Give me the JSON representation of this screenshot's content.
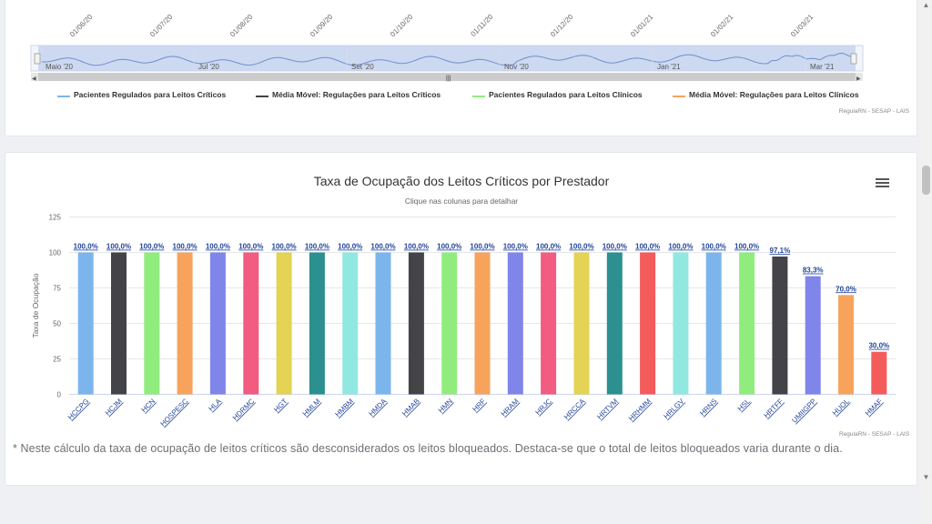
{
  "top_chart": {
    "date_labels": [
      "01/06/20",
      "01/07/20",
      "01/08/20",
      "01/09/20",
      "01/10/20",
      "01/11/20",
      "01/12/20",
      "01/01/21",
      "01/02/21",
      "01/03/21"
    ],
    "navigator_labels": [
      "Maio '20",
      "Jul '20",
      "Set '20",
      "Nov '20",
      "Jan '21",
      "Mar '21"
    ],
    "legend": [
      {
        "label": "Pacientes Regulados para Leitos Críticos",
        "color": "#7cb5ec"
      },
      {
        "label": "Média Móvel: Regulações para Leitos Críticos",
        "color": "#434348"
      },
      {
        "label": "Pacientes Regulados para Leitos Clínicos",
        "color": "#90ed7d"
      },
      {
        "label": "Média Móvel: Regulações para Leitos Clínicos",
        "color": "#f7a35c"
      }
    ],
    "credits": "RegulaRN - SESAP - LAIS"
  },
  "chart_data": {
    "type": "bar",
    "title": "Taxa de Ocupação dos Leitos Críticos por Prestador",
    "subtitle": "Clique nas colunas para detalhar",
    "ylabel": "Taxa de Ocupação",
    "ylim": [
      0,
      125
    ],
    "yticks": [
      0,
      25,
      50,
      75,
      100,
      125
    ],
    "grid": true,
    "categories": [
      "HCCPG",
      "HCJM",
      "HCN",
      "HOSPESC",
      "HLA",
      "HDRMC",
      "HGT",
      "HMLM",
      "HMBM",
      "HMDA",
      "HMAB",
      "HMN",
      "HRF",
      "HRAM",
      "HRJC",
      "HRCCA",
      "HRTVM",
      "HRHMM",
      "HRLGV",
      "HRNS",
      "HSL",
      "HRTFF",
      "UMIIGPP",
      "HUOL",
      "HMAF"
    ],
    "values": [
      100.0,
      100.0,
      100.0,
      100.0,
      100.0,
      100.0,
      100.0,
      100.0,
      100.0,
      100.0,
      100.0,
      100.0,
      100.0,
      100.0,
      100.0,
      100.0,
      100.0,
      100.0,
      100.0,
      100.0,
      100.0,
      97.1,
      83.3,
      70.0,
      30.0
    ],
    "data_labels": [
      "100,0%",
      "100,0%",
      "100,0%",
      "100,0%",
      "100,0%",
      "100,0%",
      "100,0%",
      "100,0%",
      "100,0%",
      "100,0%",
      "100,0%",
      "100,0%",
      "100,0%",
      "100,0%",
      "100,0%",
      "100,0%",
      "100,0%",
      "100,0%",
      "100,0%",
      "100,0%",
      "100,0%",
      "97,1%",
      "83,3%",
      "70,0%",
      "30,0%"
    ],
    "colors": [
      "#7cb5ec",
      "#434348",
      "#90ed7d",
      "#f7a35c",
      "#8085e9",
      "#f15c80",
      "#e4d354",
      "#2b908f",
      "#91e8e1",
      "#7cb5ec",
      "#434348",
      "#90ed7d",
      "#f7a35c",
      "#8085e9",
      "#f15c80",
      "#e4d354",
      "#2b908f",
      "#f45b5b",
      "#91e8e1",
      "#7cb5ec",
      "#90ed7d",
      "#434348",
      "#8085e9",
      "#f7a35c",
      "#f45b5b"
    ]
  },
  "main_credits": "RegulaRN - SESAP - LAIS",
  "note": "* Neste cálculo da taxa de ocupação de leitos críticos são desconsiderados os leitos bloqueados. Destaca-se que o total de leitos bloqueados varia durante o dia."
}
